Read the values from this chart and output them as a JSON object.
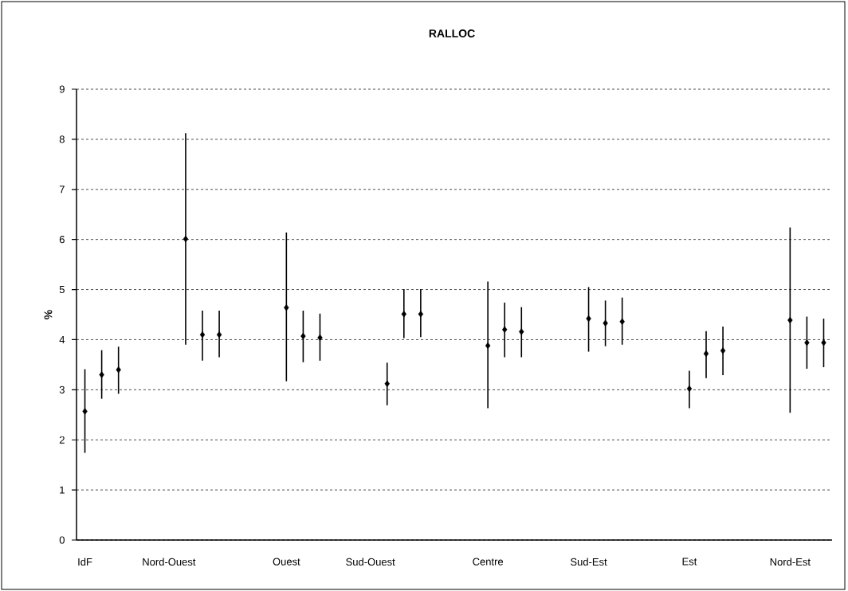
{
  "chart_data": {
    "type": "scatter",
    "title": "RALLOC",
    "ylabel": "%",
    "categories": [
      "IdF",
      null,
      null,
      null,
      null,
      "Nord-Ouest",
      null,
      null,
      null,
      null,
      null,
      null,
      "Ouest",
      null,
      null,
      null,
      null,
      "Sud-Ouest",
      null,
      null,
      null,
      null,
      null,
      null,
      "Centre",
      null,
      null,
      null,
      null,
      null,
      "Sud-Est",
      null,
      null,
      null,
      null,
      null,
      "Est",
      null,
      null,
      null,
      null,
      null,
      "Nord-Est",
      null,
      null
    ],
    "series": [
      {
        "color": "#000000",
        "values": [
          2.57,
          3.3,
          3.4,
          null,
          null,
          null,
          6.01,
          4.1,
          4.1,
          null,
          null,
          null,
          4.64,
          4.07,
          4.04,
          null,
          null,
          null,
          3.12,
          4.51,
          4.51,
          null,
          null,
          null,
          3.88,
          4.2,
          4.16,
          null,
          null,
          null,
          4.42,
          4.33,
          4.36,
          null,
          null,
          null,
          3.02,
          3.72,
          3.78,
          null,
          null,
          null,
          4.39,
          3.94,
          3.94
        ],
        "errors": [
          [
            1.74,
            3.41
          ],
          [
            2.82,
            3.79
          ],
          [
            2.92,
            3.86
          ],
          null,
          null,
          null,
          [
            3.9,
            8.12
          ],
          [
            3.58,
            4.58
          ],
          [
            3.65,
            4.58
          ],
          null,
          null,
          null,
          [
            3.17,
            6.14
          ],
          [
            3.55,
            4.58
          ],
          [
            3.58,
            4.52
          ],
          null,
          null,
          null,
          [
            2.69,
            3.54
          ],
          [
            4.03,
            5.01
          ],
          [
            4.05,
            5.01
          ],
          null,
          null,
          null,
          [
            2.63,
            5.16
          ],
          [
            3.65,
            4.74
          ],
          [
            3.65,
            4.65
          ],
          null,
          null,
          null,
          [
            3.76,
            5.05
          ],
          [
            3.87,
            4.78
          ],
          [
            3.9,
            4.84
          ],
          null,
          null,
          null,
          [
            2.63,
            3.38
          ],
          [
            3.23,
            4.17
          ],
          [
            3.29,
            4.26
          ],
          null,
          null,
          null,
          [
            2.54,
            6.24
          ],
          [
            3.42,
            4.46
          ],
          [
            3.45,
            4.42
          ]
        ]
      }
    ],
    "ylim": [
      0,
      9
    ],
    "yticks": [
      0,
      1,
      2,
      3,
      4,
      5,
      6,
      7,
      8,
      9
    ],
    "grid": "y",
    "marker": "diamond"
  }
}
